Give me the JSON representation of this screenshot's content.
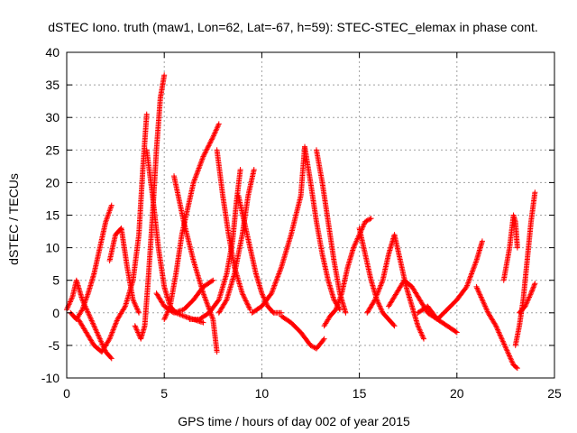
{
  "chart_data": {
    "type": "scatter",
    "title": "dSTEC Iono. truth (maw1, Lon=62, Lat=-67, h=59): STEC-STEC_elemax in phase cont.",
    "xlabel": "GPS time / hours of day 002 of year 2015",
    "ylabel": "dSTEC  / TECUs",
    "xlim": [
      0,
      25
    ],
    "ylim": [
      -10,
      40
    ],
    "xticks": [
      0,
      5,
      10,
      15,
      20,
      25
    ],
    "yticks": [
      -10,
      -5,
      0,
      5,
      10,
      15,
      20,
      25,
      30,
      35,
      40
    ],
    "grid": true,
    "marker": "+",
    "color": "#ff0000",
    "series": [
      {
        "x": [
          0.0,
          0.3,
          0.5,
          0.8,
          1.1,
          1.4,
          1.7,
          2.0,
          2.3
        ],
        "y": [
          0.5,
          2.5,
          5.0,
          2.0,
          0.0,
          -2.0,
          -4.0,
          -6.0,
          -7.0
        ]
      },
      {
        "x": [
          0.2,
          0.5,
          0.8,
          1.1,
          1.4,
          1.7,
          2.0,
          2.3
        ],
        "y": [
          0.0,
          -1.0,
          0.5,
          3.0,
          6.0,
          10.0,
          14.0,
          16.5
        ]
      },
      {
        "x": [
          0.6,
          1.0,
          1.4,
          1.8,
          2.2,
          2.6,
          3.0,
          3.4,
          3.7,
          3.9,
          4.1
        ],
        "y": [
          -1.0,
          -3.0,
          -5.0,
          -6.0,
          -4.0,
          -1.0,
          1.0,
          5.0,
          12.0,
          22.0,
          30.5
        ]
      },
      {
        "x": [
          2.2,
          2.5,
          2.8,
          3.1,
          3.4,
          3.7
        ],
        "y": [
          8.0,
          12.0,
          13.0,
          7.0,
          2.0,
          0.0
        ]
      },
      {
        "x": [
          3.5,
          3.8,
          4.0,
          4.2,
          4.4,
          4.6,
          4.8,
          5.0
        ],
        "y": [
          -2.0,
          -4.0,
          -2.0,
          6.0,
          15.0,
          25.0,
          33.0,
          36.5
        ]
      },
      {
        "x": [
          4.1,
          4.4,
          4.7,
          5.0,
          5.3,
          5.6,
          6.0,
          6.5,
          7.0
        ],
        "y": [
          25.0,
          18.0,
          10.0,
          4.0,
          1.0,
          0.0,
          -0.5,
          -1.0,
          -1.5
        ]
      },
      {
        "x": [
          5.0,
          5.3,
          5.6,
          5.9,
          6.2,
          6.5,
          7.0,
          7.5,
          7.8
        ],
        "y": [
          -1.0,
          1.0,
          6.0,
          12.0,
          16.0,
          20.0,
          24.0,
          27.0,
          29.0
        ]
      },
      {
        "x": [
          4.6,
          5.0,
          5.5,
          6.0,
          6.5,
          7.0,
          7.5
        ],
        "y": [
          3.0,
          1.0,
          0.0,
          0.5,
          2.0,
          4.0,
          5.0
        ]
      },
      {
        "x": [
          5.5,
          6.0,
          6.5,
          7.0,
          7.5,
          7.7
        ],
        "y": [
          21.0,
          14.0,
          8.0,
          3.0,
          -1.0,
          -6.0
        ]
      },
      {
        "x": [
          6.3,
          6.8,
          7.3,
          7.8,
          8.2,
          8.5,
          8.7,
          8.9
        ],
        "y": [
          -1.0,
          -1.0,
          0.0,
          2.0,
          6.0,
          11.0,
          17.0,
          22.0
        ]
      },
      {
        "x": [
          7.7,
          8.0,
          8.3,
          8.6,
          9.0,
          9.4
        ],
        "y": [
          25.0,
          18.0,
          12.0,
          7.0,
          3.0,
          0.5
        ]
      },
      {
        "x": [
          8.8,
          9.1,
          9.4,
          9.7,
          10.0,
          10.3,
          10.6,
          11.0
        ],
        "y": [
          18.0,
          14.0,
          10.0,
          6.0,
          3.0,
          1.0,
          0.0,
          0.0
        ]
      },
      {
        "x": [
          7.8,
          8.2,
          8.6,
          9.0,
          9.3,
          9.6
        ],
        "y": [
          0.0,
          2.0,
          6.0,
          12.0,
          18.0,
          22.0
        ]
      },
      {
        "x": [
          9.5,
          10.0,
          10.5,
          11.0,
          11.5,
          12.0,
          12.2
        ],
        "y": [
          0.0,
          1.0,
          3.0,
          7.0,
          12.0,
          18.0,
          25.5
        ]
      },
      {
        "x": [
          12.2,
          12.5,
          12.8,
          13.1,
          13.4,
          13.7,
          14.0
        ],
        "y": [
          25.5,
          20.0,
          14.0,
          9.0,
          5.0,
          2.0,
          0.5
        ]
      },
      {
        "x": [
          11.0,
          11.5,
          12.0,
          12.5,
          12.8,
          13.2
        ],
        "y": [
          -0.5,
          -1.5,
          -3.0,
          -5.0,
          -5.5,
          -4.0
        ]
      },
      {
        "x": [
          12.8,
          13.1,
          13.4,
          13.7,
          14.0,
          14.3
        ],
        "y": [
          25.0,
          20.0,
          14.0,
          8.0,
          3.0,
          0.0
        ]
      },
      {
        "x": [
          13.2,
          13.5,
          13.8,
          14.1,
          14.4,
          14.7,
          15.0,
          15.3,
          15.6
        ],
        "y": [
          -2.0,
          -0.5,
          0.5,
          3.0,
          7.0,
          10.0,
          12.0,
          14.0,
          14.5
        ]
      },
      {
        "x": [
          15.0,
          15.3,
          15.6,
          15.9,
          16.2,
          16.5,
          16.8
        ],
        "y": [
          13.0,
          9.0,
          5.0,
          2.0,
          0.0,
          -1.0,
          -2.0
        ]
      },
      {
        "x": [
          15.4,
          15.8,
          16.2,
          16.5,
          16.8,
          17.1,
          17.4,
          17.7,
          18.0,
          18.3
        ],
        "y": [
          0.0,
          2.0,
          5.0,
          9.0,
          12.0,
          8.0,
          4.0,
          1.0,
          -2.0,
          -4.0
        ]
      },
      {
        "x": [
          16.5,
          16.9,
          17.3,
          17.7,
          18.1,
          18.5,
          19.0,
          19.5,
          20.0
        ],
        "y": [
          1.0,
          3.0,
          5.0,
          4.0,
          2.0,
          0.0,
          -1.0,
          -2.0,
          -3.0
        ]
      },
      {
        "x": [
          18.0,
          18.5,
          19.0,
          19.5,
          20.0,
          20.5,
          21.0,
          21.3
        ],
        "y": [
          0.0,
          1.0,
          -1.0,
          0.5,
          2.0,
          4.0,
          8.0,
          11.0
        ]
      },
      {
        "x": [
          21.0,
          21.3,
          21.6,
          22.0,
          22.3,
          22.6,
          22.9,
          23.1
        ],
        "y": [
          4.0,
          2.0,
          0.0,
          -2.0,
          -4.0,
          -6.0,
          -8.0,
          -8.5
        ]
      },
      {
        "x": [
          22.4,
          22.7,
          22.9,
          23.0,
          23.1
        ],
        "y": [
          5.0,
          10.0,
          15.0,
          14.0,
          10.0
        ]
      },
      {
        "x": [
          23.0,
          23.2,
          23.4,
          23.6,
          23.8,
          24.0
        ],
        "y": [
          -5.0,
          -2.0,
          2.0,
          8.0,
          14.0,
          18.5
        ]
      },
      {
        "x": [
          23.2,
          23.5,
          23.8,
          24.0
        ],
        "y": [
          0.0,
          1.0,
          3.0,
          4.5
        ]
      }
    ]
  }
}
